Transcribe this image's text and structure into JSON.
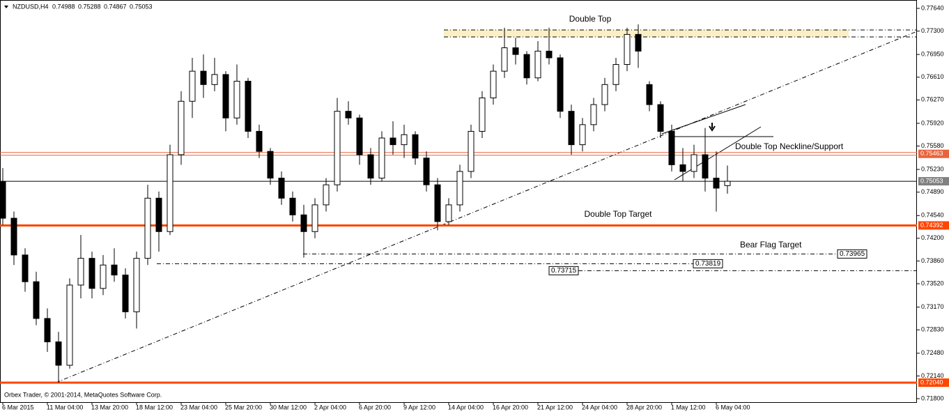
{
  "chart_data": {
    "type": "candlestick",
    "symbol": "NZDUSD,H4",
    "x": [
      "6 Mar 2015",
      null,
      null,
      null,
      "11 Mar 04:00",
      null,
      null,
      null,
      "13 Mar 20:00",
      null,
      null,
      null,
      "18 Mar 12:00",
      null,
      null,
      null,
      "23 Mar 04:00",
      null,
      null,
      null,
      "25 Mar 20:00",
      null,
      null,
      null,
      "30 Mar 12:00",
      null,
      null,
      null,
      "2 Apr 04:00",
      null,
      null,
      null,
      "6 Apr 20:00",
      null,
      null,
      null,
      "9 Apr 12:00",
      null,
      null,
      null,
      "14 Apr 04:00",
      null,
      null,
      null,
      "16 Apr 20:00",
      null,
      null,
      null,
      "21 Apr 12:00",
      null,
      null,
      null,
      "24 Apr 04:00",
      null,
      null,
      null,
      "28 Apr 20:00",
      null,
      null,
      null,
      "1 May 12:00",
      null,
      null,
      null,
      "6 May 04:00",
      null
    ],
    "open": [
      0.7505,
      0.745,
      0.7395,
      0.7355,
      0.73,
      0.7265,
      0.723,
      0.735,
      0.739,
      0.7345,
      0.738,
      0.7365,
      0.731,
      0.739,
      0.748,
      0.743,
      0.7545,
      0.7625,
      0.767,
      0.765,
      0.7665,
      0.76,
      0.7655,
      0.758,
      0.755,
      0.751,
      0.748,
      0.7455,
      0.743,
      0.747,
      0.75,
      0.761,
      0.76,
      0.7545,
      0.751,
      0.757,
      0.756,
      0.7575,
      0.754,
      0.75,
      0.7445,
      0.747,
      0.752,
      0.758,
      0.763,
      0.767,
      0.7705,
      0.7695,
      0.766,
      0.77,
      0.769,
      0.761,
      0.756,
      0.759,
      0.762,
      0.765,
      0.768,
      0.7725,
      0.765,
      0.762,
      0.758,
      0.753,
      0.752,
      0.7545,
      0.751,
      0.74988
    ],
    "high": [
      0.7525,
      0.746,
      0.7405,
      0.737,
      0.7315,
      0.728,
      0.736,
      0.7425,
      0.74,
      0.7395,
      0.7405,
      0.7375,
      0.74,
      0.75,
      0.749,
      0.756,
      0.764,
      0.769,
      0.7695,
      0.769,
      0.767,
      0.768,
      0.766,
      0.759,
      0.7555,
      0.752,
      0.749,
      0.747,
      0.748,
      0.751,
      0.763,
      0.7625,
      0.7605,
      0.7555,
      0.758,
      0.7595,
      0.759,
      0.758,
      0.755,
      0.751,
      0.748,
      0.753,
      0.759,
      0.764,
      0.768,
      0.7735,
      0.772,
      0.77,
      0.7715,
      0.7735,
      0.7695,
      0.762,
      0.76,
      0.763,
      0.766,
      0.769,
      0.7735,
      0.774,
      0.7655,
      0.7625,
      0.759,
      0.7555,
      0.756,
      0.7585,
      0.755,
      0.75288
    ],
    "low": [
      0.744,
      0.738,
      0.734,
      0.729,
      0.725,
      0.7204,
      0.7225,
      0.733,
      0.733,
      0.7335,
      0.7355,
      0.73,
      0.7285,
      0.738,
      0.74,
      0.7425,
      0.753,
      0.76,
      0.763,
      0.764,
      0.758,
      0.759,
      0.757,
      0.754,
      0.75,
      0.747,
      0.7445,
      0.7391,
      0.742,
      0.746,
      0.749,
      0.759,
      0.753,
      0.75,
      0.7505,
      0.7545,
      0.754,
      0.753,
      0.749,
      0.7432,
      0.744,
      0.746,
      0.751,
      0.757,
      0.762,
      0.766,
      0.768,
      0.765,
      0.7655,
      0.768,
      0.76,
      0.7545,
      0.755,
      0.758,
      0.761,
      0.764,
      0.767,
      0.7675,
      0.761,
      0.757,
      0.752,
      0.7505,
      0.751,
      0.749,
      0.746,
      0.74867
    ],
    "close": [
      0.745,
      0.7395,
      0.7355,
      0.73,
      0.7265,
      0.723,
      0.735,
      0.739,
      0.7345,
      0.738,
      0.7365,
      0.731,
      0.739,
      0.748,
      0.743,
      0.7545,
      0.7625,
      0.767,
      0.765,
      0.7665,
      0.76,
      0.7655,
      0.758,
      0.755,
      0.751,
      0.748,
      0.7455,
      0.743,
      0.747,
      0.75,
      0.761,
      0.76,
      0.7545,
      0.751,
      0.757,
      0.756,
      0.7575,
      0.754,
      0.75,
      0.7445,
      0.747,
      0.752,
      0.758,
      0.763,
      0.767,
      0.7705,
      0.7695,
      0.766,
      0.77,
      0.769,
      0.761,
      0.756,
      0.759,
      0.762,
      0.765,
      0.768,
      0.7725,
      0.77,
      0.762,
      0.758,
      0.753,
      0.752,
      0.7545,
      0.751,
      0.7495,
      0.75053
    ],
    "ylim": [
      0.71748,
      0.77765
    ],
    "yticks": [
      {
        "value": 0.7764,
        "label": "0.77640"
      },
      {
        "value": 0.773,
        "label": "0.77300"
      },
      {
        "value": 0.7695,
        "label": "0.76950"
      },
      {
        "value": 0.7661,
        "label": "0.76610"
      },
      {
        "value": 0.7627,
        "label": "0.76270"
      },
      {
        "value": 0.7592,
        "label": "0.75920"
      },
      {
        "value": 0.7558,
        "label": "0.75580"
      },
      {
        "value": 0.7523,
        "label": "0.75230"
      },
      {
        "value": 0.7489,
        "label": "0.74890"
      },
      {
        "value": 0.7454,
        "label": "0.74540"
      },
      {
        "value": 0.742,
        "label": "0.74200"
      },
      {
        "value": 0.7386,
        "label": "0.73860"
      },
      {
        "value": 0.7352,
        "label": "0.73520"
      },
      {
        "value": 0.7317,
        "label": "0.73170"
      },
      {
        "value": 0.7283,
        "label": "0.72830"
      },
      {
        "value": 0.7248,
        "label": "0.72480"
      },
      {
        "value": 0.7214,
        "label": "0.72140"
      },
      {
        "value": 0.718,
        "label": "0.71800"
      }
    ],
    "levels": [
      {
        "value": 0.75463,
        "color": "#e8643c"
      },
      {
        "value": 0.74392,
        "color": "#ff4500"
      },
      {
        "value": {
          "value": 0.7204,
          "label": "0.72040"
        },
        "color": "#ff4500"
      }
    ],
    "targets": [
      0.73965,
      0.73819,
      0.73715
    ],
    "annotations": [
      "Double Top",
      "Double Top Neckline/Support",
      "Double Top Target",
      "Bear Flag Target"
    ],
    "copyright": "Orbex Trader, © 2001-2014, MetaQuotes Software Corp.",
    "up_color": "#ffffff",
    "down_color": "#000000"
  }
}
